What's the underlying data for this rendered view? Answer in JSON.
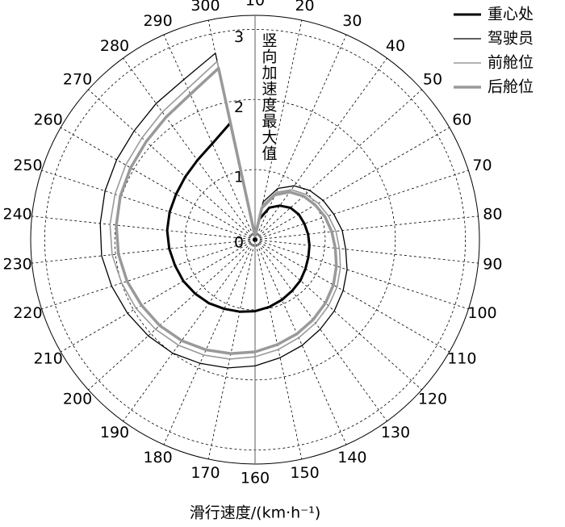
{
  "chart_data": {
    "type": "polar-line",
    "x_label": "滑行速度/(km·h⁻¹)",
    "r_label": "竖向加速度最大值",
    "x": [
      10,
      20,
      30,
      40,
      50,
      60,
      70,
      80,
      90,
      100,
      110,
      120,
      130,
      140,
      150,
      160,
      170,
      180,
      190,
      200,
      210,
      220,
      230,
      240,
      250,
      260,
      270,
      280,
      290,
      300
    ],
    "xlim": [
      10,
      310
    ],
    "xticks": [
      10,
      20,
      30,
      40,
      50,
      60,
      70,
      80,
      90,
      100,
      110,
      120,
      130,
      140,
      150,
      160,
      170,
      180,
      190,
      200,
      210,
      220,
      230,
      240,
      250,
      260,
      270,
      280,
      290,
      300
    ],
    "ylim": [
      0,
      3.2
    ],
    "yticks": [
      0,
      1,
      2,
      3
    ],
    "grid": true,
    "legend": "upper right",
    "series": [
      {
        "name": "重心处",
        "color": "#000000",
        "width": 3,
        "values": [
          0.05,
          0.3,
          0.5,
          0.6,
          0.68,
          0.72,
          0.74,
          0.76,
          0.78,
          0.8,
          0.83,
          0.87,
          0.9,
          0.94,
          0.98,
          1.02,
          1.05,
          1.08,
          1.12,
          1.15,
          1.18,
          1.2,
          1.23,
          1.26,
          1.28,
          1.3,
          1.34,
          1.4,
          1.5,
          1.7
        ]
      },
      {
        "name": "驾驶员",
        "color": "#000000",
        "width": 1.3,
        "values": [
          0.05,
          0.55,
          0.8,
          0.95,
          1.05,
          1.12,
          1.18,
          1.25,
          1.3,
          1.38,
          1.45,
          1.52,
          1.58,
          1.65,
          1.72,
          1.8,
          1.87,
          1.93,
          2.0,
          2.05,
          2.1,
          2.15,
          2.2,
          2.22,
          2.25,
          2.28,
          2.32,
          2.4,
          2.5,
          2.72
        ]
      },
      {
        "name": "前舱位",
        "color": "#999999",
        "width": 1.6,
        "values": [
          0.05,
          0.5,
          0.74,
          0.88,
          0.97,
          1.04,
          1.1,
          1.16,
          1.21,
          1.28,
          1.35,
          1.41,
          1.47,
          1.53,
          1.6,
          1.67,
          1.74,
          1.8,
          1.86,
          1.91,
          1.96,
          2.0,
          2.05,
          2.08,
          2.1,
          2.13,
          2.17,
          2.25,
          2.36,
          2.6
        ]
      },
      {
        "name": "后舱位",
        "color": "#999999",
        "width": 3.5,
        "values": [
          0.05,
          0.46,
          0.7,
          0.84,
          0.93,
          0.99,
          1.05,
          1.1,
          1.15,
          1.22,
          1.29,
          1.35,
          1.41,
          1.47,
          1.53,
          1.6,
          1.66,
          1.72,
          1.78,
          1.83,
          1.87,
          1.92,
          1.96,
          1.99,
          2.02,
          2.05,
          2.09,
          2.16,
          2.27,
          2.5
        ]
      }
    ]
  }
}
